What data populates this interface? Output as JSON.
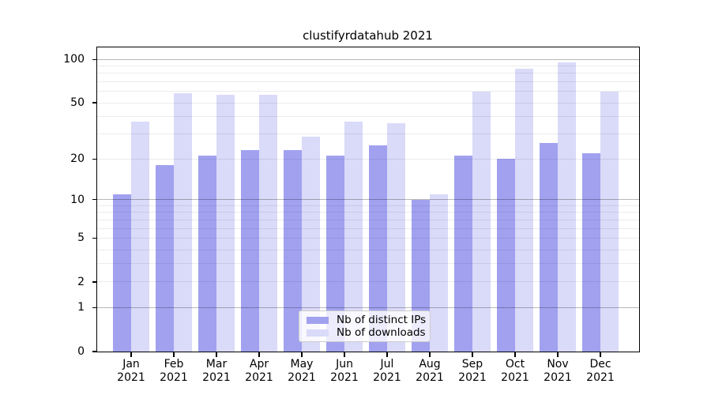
{
  "chart_data": {
    "type": "bar",
    "title": "clustifyrdatahub 2021",
    "x_categories_month": [
      "Jan",
      "Feb",
      "Mar",
      "Apr",
      "May",
      "Jun",
      "Jul",
      "Aug",
      "Sep",
      "Oct",
      "Nov",
      "Dec"
    ],
    "x_categories_year": "2021",
    "series": [
      {
        "name": "Nb of distinct IPs",
        "color": "#a1a1f0",
        "values": [
          11,
          18,
          21,
          23,
          23,
          21,
          25,
          10,
          21,
          20,
          26,
          22
        ]
      },
      {
        "name": "Nb of downloads",
        "color": "#dadaf9",
        "values": [
          37,
          58,
          57,
          57,
          29,
          37,
          36,
          11,
          60,
          86,
          96,
          60
        ]
      }
    ],
    "y_scale": "log1p",
    "y_axis_tick_labels": [
      "0",
      "1",
      "2",
      "5",
      "10",
      "20",
      "50",
      "100"
    ],
    "y_axis_ticks": [
      0,
      1,
      2,
      5,
      10,
      20,
      50,
      100
    ],
    "y_major_gridlines": [
      1,
      10,
      100
    ],
    "y_minor_gridlines": [
      2,
      3,
      4,
      5,
      6,
      7,
      8,
      9,
      20,
      30,
      40,
      50,
      60,
      70,
      80,
      90
    ],
    "ylim": [
      0,
      122
    ],
    "grid": true,
    "legend_position": "lower-center",
    "colors": {
      "axis": "#000000",
      "major_grid": "#b5b5b5",
      "minor_grid": "#ebebeb",
      "background": "#ffffff"
    }
  }
}
